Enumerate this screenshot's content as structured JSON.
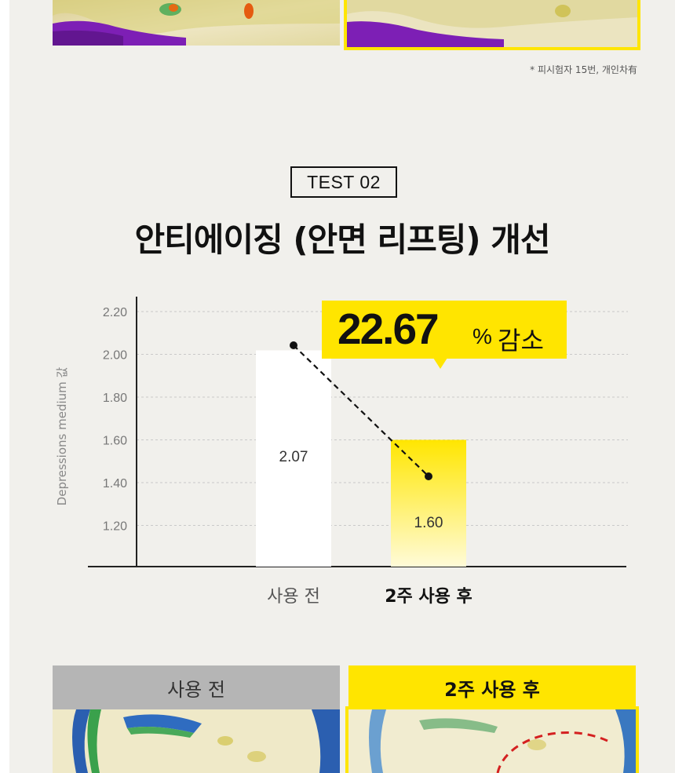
{
  "footnote": "* 피시험자 15번, 개인차有",
  "test_badge": "TEST 02",
  "headline": "안티에이징 (안면 리프팅) 개선",
  "callout": {
    "value": "22.67",
    "percent": "%",
    "unit": "감소"
  },
  "chart_data": {
    "type": "bar",
    "ylabel": "Depressions medium 값",
    "yticks": [
      "2.20",
      "2.00",
      "1.80",
      "1.60",
      "1.40",
      "1.20"
    ],
    "ylim": [
      1.2,
      2.2
    ],
    "categories": [
      "사용 전",
      "2주 사용 후"
    ],
    "values": [
      2.07,
      1.6
    ],
    "value_labels": [
      "2.07",
      "1.60"
    ],
    "grid": true
  },
  "tabs": {
    "before": "사용 전",
    "after": "2주 사용 후"
  },
  "colors": {
    "accent": "#ffe500",
    "background": "#f1f0ec"
  }
}
